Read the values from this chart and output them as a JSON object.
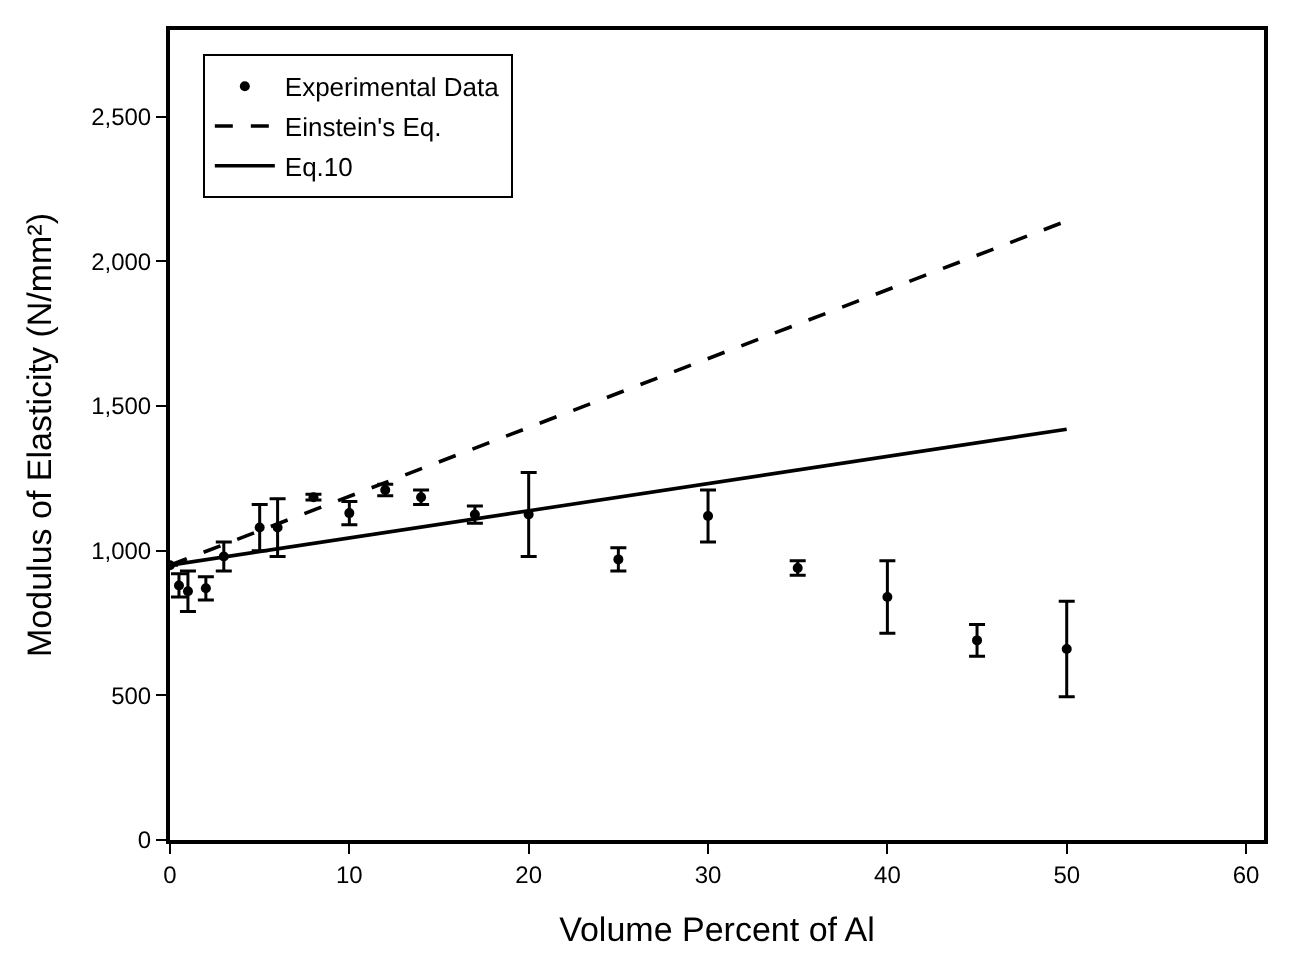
{
  "chart_data": {
    "type": "scatter",
    "xlabel": "Volume Percent of Al",
    "ylabel": "Modulus of Elasticity (N/mm²)",
    "xlim": [
      0,
      61
    ],
    "xticks": [
      0,
      10,
      20,
      30,
      40,
      50,
      60
    ],
    "ylim": [
      0,
      2800
    ],
    "yticks": [
      0,
      500,
      {
        "value": 1000,
        "label": "1,000"
      },
      {
        "value": 1500,
        "label": "1,500"
      },
      {
        "value": 2000,
        "label": "2,000"
      },
      {
        "value": 2500,
        "label": "2,500"
      }
    ],
    "legend": "top left",
    "series": [
      {
        "name": "Experimental Data",
        "marker": "circle",
        "color": "#000000",
        "x": [
          0,
          0.5,
          1,
          2,
          3,
          5,
          6,
          8,
          10,
          12,
          14,
          17,
          20,
          25,
          30,
          35,
          40,
          45,
          50
        ],
        "values": [
          950,
          880,
          860,
          870,
          980,
          1080,
          1080,
          1185,
          1130,
          1210,
          1185,
          1125,
          1125,
          970,
          1120,
          940,
          840,
          690,
          660
        ],
        "errors": [
          null,
          40,
          70,
          40,
          50,
          80,
          100,
          10,
          40,
          20,
          25,
          30,
          145,
          40,
          90,
          25,
          125,
          55,
          165
        ]
      },
      {
        "name": "Einstein's Eq.",
        "type": "line",
        "line_style": "dashed",
        "marker": "none",
        "color": "#000000",
        "x": [
          0,
          50
        ],
        "values": [
          950,
          2140
        ]
      },
      {
        "name": "Eq.10",
        "type": "line",
        "line_style": "solid",
        "marker": "none",
        "color": "#000000",
        "x": [
          0,
          50
        ],
        "values": [
          950,
          1420
        ]
      }
    ]
  }
}
